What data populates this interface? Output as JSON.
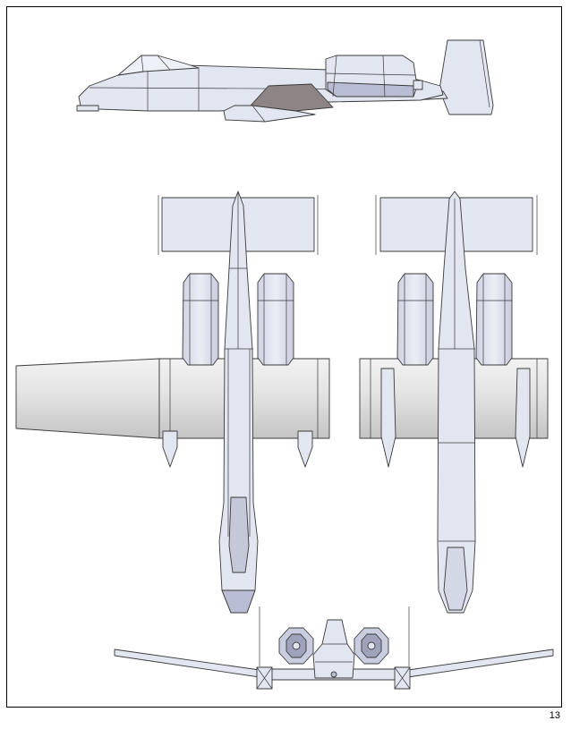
{
  "page": {
    "number": "13",
    "colors": {
      "hull": "#e2e6f1",
      "hull_shade": "#b9bdd3",
      "wing_gray": "#d7d7d7",
      "fairing": "#8d8585",
      "outline": "#3a3a3a"
    }
  },
  "views": [
    "side-view",
    "top-view",
    "bottom-view",
    "front-view"
  ]
}
